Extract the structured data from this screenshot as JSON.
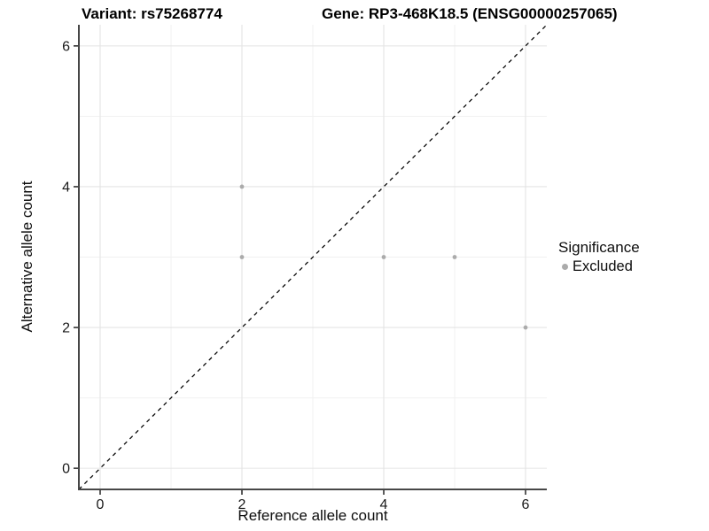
{
  "titles": {
    "left": "Variant: rs75268774",
    "right": "Gene: RP3-468K18.5 (ENSG00000257065)"
  },
  "legend": {
    "title": "Significance",
    "items": [
      {
        "label": "Excluded",
        "color": "#ababab"
      }
    ]
  },
  "chart_data": {
    "type": "scatter",
    "title": "Variant: rs75268774",
    "subtitle_right": "Gene: RP3-468K18.5 (ENSG00000257065)",
    "xlabel": "Reference allele count",
    "ylabel": "Alternative allele count",
    "series": [
      {
        "name": "Excluded",
        "color": "#ababab",
        "points": [
          [
            2,
            4
          ],
          [
            2,
            3
          ],
          [
            4,
            3
          ],
          [
            5,
            3
          ],
          [
            6,
            2
          ]
        ]
      }
    ],
    "reference_line": {
      "type": "identity",
      "style": "dashed",
      "color": "#000000"
    },
    "xlim": [
      -0.3,
      6.3
    ],
    "ylim": [
      -0.3,
      6.3
    ],
    "x_ticks": [
      0,
      2,
      4,
      6
    ],
    "y_ticks": [
      0,
      2,
      4,
      6
    ],
    "x_minor_ticks": [
      1,
      3,
      5
    ],
    "y_minor_ticks": [
      1,
      3,
      5
    ],
    "grid": true,
    "legend_title": "Significance",
    "legend_position": "right",
    "colors": {
      "major_grid": "#e4e4e4",
      "minor_grid": "#f1f1f1",
      "axis_line": "#474747",
      "tick_mark": "#333333",
      "point": "#ababab"
    }
  }
}
